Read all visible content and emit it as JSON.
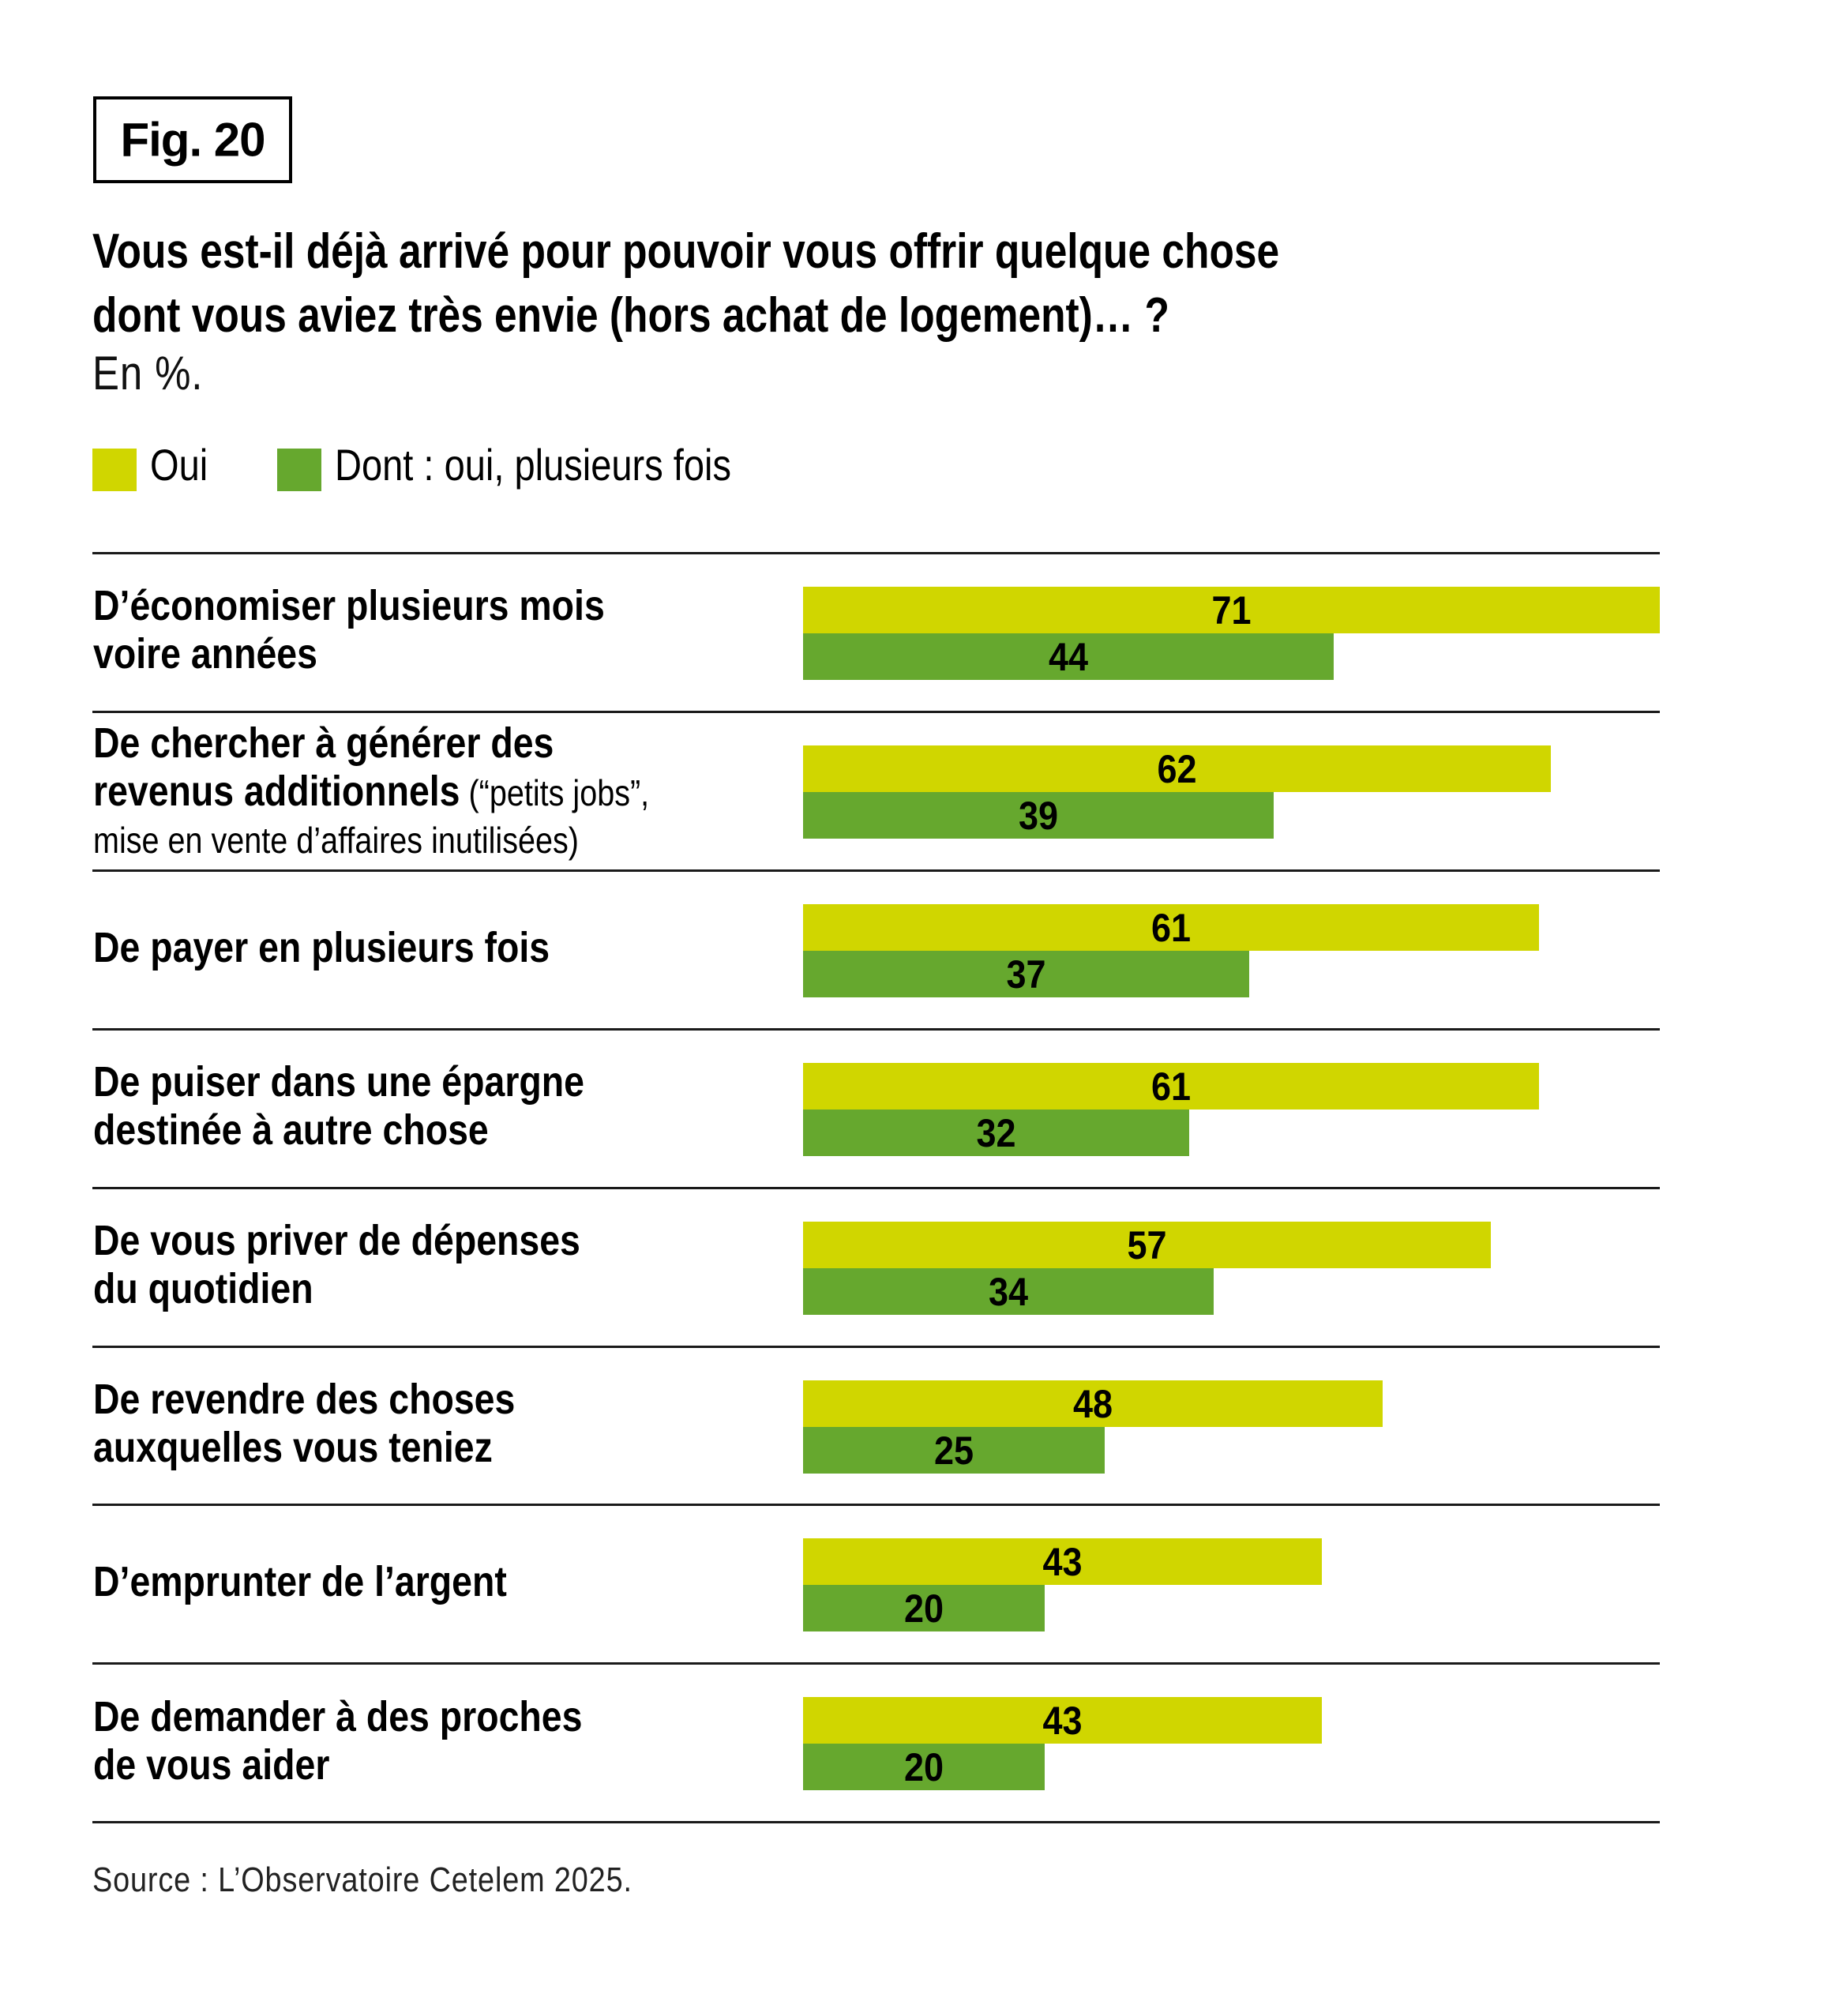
{
  "figure": {
    "label": "Fig. 20",
    "title_line1": "Vous est-il déjà arrivé pour pouvoir vous offrir quelque chose",
    "title_line2": "dont vous aviez très envie (hors achat de logement)… ?",
    "subtitle": "En %.",
    "source": "Source : L’Observatoire Cetelem 2025."
  },
  "colors": {
    "oui": "#D0D600",
    "plusieurs_fois": "#66A82E",
    "rule": "#1a1a1a"
  },
  "chart_data": {
    "type": "bar",
    "orientation": "horizontal",
    "title": "Vous est-il déjà arrivé pour pouvoir vous offrir quelque chose dont vous aviez très envie (hors achat de logement)… ?",
    "subtitle": "En %.",
    "xlabel": "",
    "ylabel": "",
    "unit": "%",
    "xlim": [
      0,
      71
    ],
    "grid": false,
    "legend_position": "top-left",
    "legend": [
      "Oui",
      "Dont : oui, plusieurs fois"
    ],
    "categories": [
      {
        "main": "D’économiser plusieurs mois",
        "main2": "voire années",
        "note": "",
        "note2": ""
      },
      {
        "main": "De chercher à générer des",
        "main2": "revenus additionnels",
        "note": " (“petits jobs”,",
        "note2": "mise en vente d’affaires inutilisées)"
      },
      {
        "main": "De payer en plusieurs fois",
        "main2": "",
        "note": "",
        "note2": ""
      },
      {
        "main": "De puiser dans une épargne",
        "main2": "destinée à autre chose",
        "note": "",
        "note2": ""
      },
      {
        "main": "De vous priver de dépenses",
        "main2": "du quotidien",
        "note": "",
        "note2": ""
      },
      {
        "main": "De revendre des choses",
        "main2": "auxquelles vous teniez",
        "note": "",
        "note2": ""
      },
      {
        "main": "D’emprunter de l’argent",
        "main2": "",
        "note": "",
        "note2": ""
      },
      {
        "main": "De demander à des proches",
        "main2": "de vous aider",
        "note": "",
        "note2": ""
      }
    ],
    "series": [
      {
        "name": "Oui",
        "values": [
          71,
          62,
          61,
          61,
          57,
          48,
          43,
          43
        ]
      },
      {
        "name": "Dont : oui, plusieurs fois",
        "values": [
          44,
          39,
          37,
          32,
          34,
          25,
          20,
          20
        ]
      }
    ],
    "source": "Source : L’Observatoire Cetelem 2025."
  }
}
